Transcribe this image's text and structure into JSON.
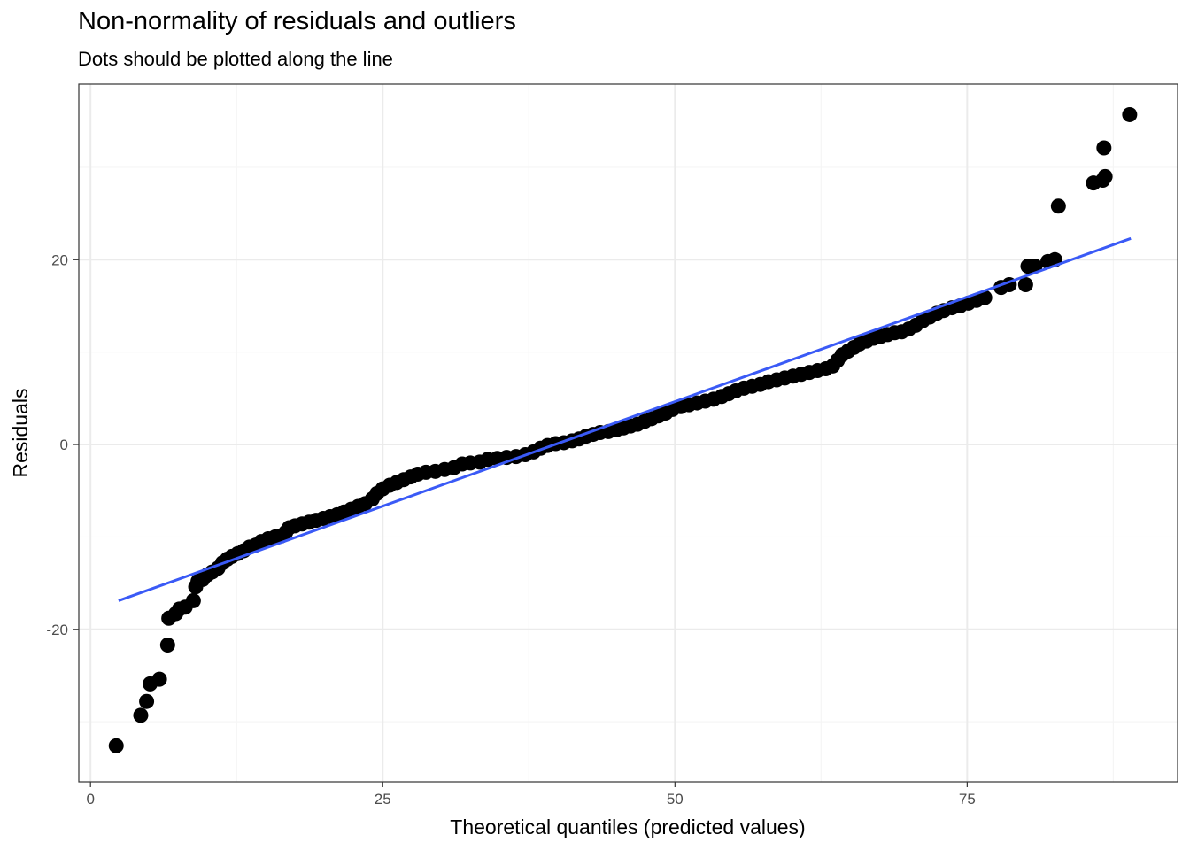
{
  "chart_data": {
    "type": "scatter",
    "title": "Non-normality of residuals and outliers",
    "subtitle": "Dots should be plotted along the line",
    "xlabel": "Theoretical quantiles (predicted values)",
    "ylabel": "Residuals",
    "xlim": [
      -1,
      93
    ],
    "ylim": [
      -36.5,
      39
    ],
    "x_ticks": [
      0,
      25,
      50,
      75
    ],
    "x_tick_labels": [
      "0",
      "25",
      "50",
      "75"
    ],
    "y_ticks": [
      -20,
      0,
      20
    ],
    "y_tick_labels": [
      "-20",
      "0",
      "20"
    ],
    "grid": true,
    "legend": "none",
    "colors": {
      "points": "#000000",
      "line": "#3a5af6",
      "panel_border": "#333333",
      "grid_major": "#ebebeb",
      "grid_minor": "#f5f5f5"
    },
    "reference_line": {
      "x": [
        2.4,
        89.0
      ],
      "y": [
        -16.9,
        22.3
      ]
    },
    "points": [
      [
        2.2,
        -32.6
      ],
      [
        4.3,
        -29.3
      ],
      [
        4.8,
        -27.8
      ],
      [
        5.1,
        -25.9
      ],
      [
        5.9,
        -25.4
      ],
      [
        6.6,
        -21.7
      ],
      [
        6.7,
        -18.8
      ],
      [
        7.3,
        -18.3
      ],
      [
        7.6,
        -17.8
      ],
      [
        8.1,
        -17.6
      ],
      [
        8.8,
        -16.9
      ],
      [
        9.0,
        -15.4
      ],
      [
        9.2,
        -14.8
      ],
      [
        9.6,
        -14.6
      ],
      [
        10.0,
        -14.1
      ],
      [
        10.4,
        -13.8
      ],
      [
        10.9,
        -13.4
      ],
      [
        11.3,
        -12.8
      ],
      [
        11.7,
        -12.4
      ],
      [
        12.1,
        -12.1
      ],
      [
        12.6,
        -11.8
      ],
      [
        13.1,
        -11.5
      ],
      [
        13.6,
        -11.1
      ],
      [
        14.1,
        -10.9
      ],
      [
        14.6,
        -10.5
      ],
      [
        15.2,
        -10.2
      ],
      [
        15.8,
        -10.0
      ],
      [
        16.3,
        -9.9
      ],
      [
        16.7,
        -9.5
      ],
      [
        17.0,
        -9.0
      ],
      [
        17.5,
        -8.8
      ],
      [
        18.1,
        -8.6
      ],
      [
        18.7,
        -8.4
      ],
      [
        19.3,
        -8.2
      ],
      [
        19.9,
        -8.0
      ],
      [
        20.5,
        -7.8
      ],
      [
        21.1,
        -7.6
      ],
      [
        21.7,
        -7.3
      ],
      [
        22.3,
        -7.0
      ],
      [
        22.9,
        -6.7
      ],
      [
        23.5,
        -6.4
      ],
      [
        24.1,
        -5.9
      ],
      [
        24.5,
        -5.3
      ],
      [
        25.0,
        -4.8
      ],
      [
        25.6,
        -4.4
      ],
      [
        26.2,
        -4.1
      ],
      [
        26.8,
        -3.8
      ],
      [
        27.4,
        -3.5
      ],
      [
        28.0,
        -3.2
      ],
      [
        28.7,
        -3.0
      ],
      [
        29.5,
        -2.9
      ],
      [
        30.3,
        -2.7
      ],
      [
        31.1,
        -2.5
      ],
      [
        31.8,
        -2.1
      ],
      [
        32.5,
        -2.0
      ],
      [
        33.3,
        -1.9
      ],
      [
        34.0,
        -1.6
      ],
      [
        34.8,
        -1.5
      ],
      [
        35.6,
        -1.4
      ],
      [
        36.4,
        -1.3
      ],
      [
        37.2,
        -1.1
      ],
      [
        37.9,
        -0.8
      ],
      [
        38.5,
        -0.4
      ],
      [
        39.1,
        -0.1
      ],
      [
        39.8,
        0.1
      ],
      [
        40.5,
        0.2
      ],
      [
        41.2,
        0.4
      ],
      [
        41.8,
        0.6
      ],
      [
        42.4,
        0.9
      ],
      [
        43.0,
        1.1
      ],
      [
        43.6,
        1.3
      ],
      [
        44.3,
        1.4
      ],
      [
        45.0,
        1.6
      ],
      [
        45.6,
        1.8
      ],
      [
        46.2,
        2.0
      ],
      [
        46.8,
        2.2
      ],
      [
        47.4,
        2.5
      ],
      [
        48.0,
        2.8
      ],
      [
        48.6,
        3.1
      ],
      [
        49.2,
        3.4
      ],
      [
        49.8,
        3.8
      ],
      [
        50.5,
        4.1
      ],
      [
        51.2,
        4.3
      ],
      [
        51.9,
        4.5
      ],
      [
        52.6,
        4.7
      ],
      [
        53.3,
        4.9
      ],
      [
        54.0,
        5.2
      ],
      [
        54.6,
        5.5
      ],
      [
        55.2,
        5.8
      ],
      [
        55.9,
        6.1
      ],
      [
        56.6,
        6.3
      ],
      [
        57.3,
        6.5
      ],
      [
        58.0,
        6.8
      ],
      [
        58.7,
        7.0
      ],
      [
        59.4,
        7.2
      ],
      [
        60.1,
        7.4
      ],
      [
        60.8,
        7.6
      ],
      [
        61.5,
        7.8
      ],
      [
        62.2,
        8.0
      ],
      [
        62.9,
        8.2
      ],
      [
        63.5,
        8.5
      ],
      [
        63.9,
        9.1
      ],
      [
        64.3,
        9.7
      ],
      [
        64.8,
        10.1
      ],
      [
        65.3,
        10.5
      ],
      [
        65.8,
        10.9
      ],
      [
        66.4,
        11.2
      ],
      [
        67.0,
        11.5
      ],
      [
        67.6,
        11.7
      ],
      [
        68.2,
        11.9
      ],
      [
        68.8,
        12.1
      ],
      [
        69.4,
        12.2
      ],
      [
        70.0,
        12.5
      ],
      [
        70.6,
        12.9
      ],
      [
        71.2,
        13.4
      ],
      [
        71.8,
        13.8
      ],
      [
        72.4,
        14.2
      ],
      [
        73.0,
        14.5
      ],
      [
        73.7,
        14.8
      ],
      [
        74.4,
        15.0
      ],
      [
        75.1,
        15.3
      ],
      [
        75.8,
        15.6
      ],
      [
        76.5,
        15.9
      ],
      [
        77.9,
        17.0
      ],
      [
        78.6,
        17.3
      ],
      [
        80.0,
        17.3
      ],
      [
        80.2,
        19.3
      ],
      [
        80.8,
        19.3
      ],
      [
        81.9,
        19.8
      ],
      [
        82.5,
        20.0
      ],
      [
        82.8,
        25.8
      ],
      [
        85.8,
        28.3
      ],
      [
        86.6,
        28.6
      ],
      [
        86.8,
        29.0
      ],
      [
        86.7,
        32.1
      ],
      [
        88.9,
        35.7
      ]
    ]
  }
}
